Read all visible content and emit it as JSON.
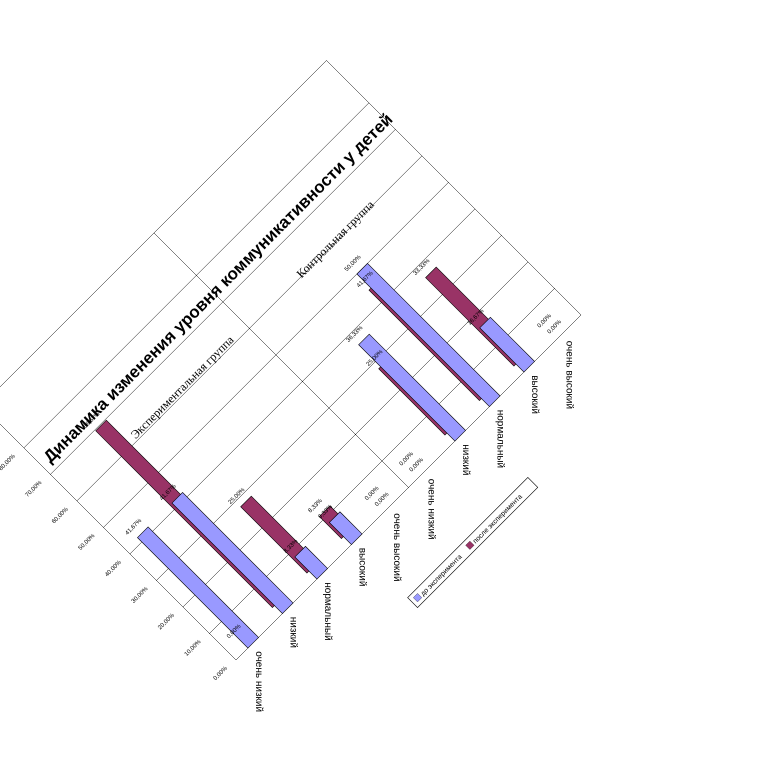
{
  "chart_data": {
    "type": "bar",
    "title": "Динамика изменения уровня коммуникативности у детей",
    "groups": [
      "Экспериментальная группа",
      "Контрольная группа"
    ],
    "categories": [
      "очень низкий",
      "низкий",
      "нормальный",
      "высокий",
      "очень высокий"
    ],
    "series": [
      {
        "name": "до эксперимента",
        "color": "#9999ff",
        "values": [
          [
            41.67,
            41.67,
            8.33,
            8.33,
            0.0
          ],
          [
            0.0,
            36.33,
            50.0,
            16.67,
            0.0
          ]
        ],
        "labels": [
          [
            "41,67%",
            "41,67%",
            "8,33%",
            "8,33%",
            "0,00%"
          ],
          [
            "0,00%",
            "36,33%",
            "50,00%",
            "16,67%",
            "0,00%"
          ]
        ]
      },
      {
        "name": "после эксперимента",
        "color": "#993366",
        "values": [
          [
            0.0,
            66.67,
            25.0,
            8.33,
            0.0
          ],
          [
            0.0,
            25.0,
            41.67,
            33.33,
            0.0
          ]
        ],
        "labels": [
          [
            "0,00%",
            "66,67%",
            "25,00%",
            "8,33%",
            "0,00%"
          ],
          [
            "0,00%",
            "25,00%",
            "41,67%",
            "33,33%",
            "0,00%"
          ]
        ]
      }
    ],
    "ylim": [
      0,
      80
    ],
    "yticks": [
      "0,00%",
      "10,00%",
      "20,00%",
      "30,00%",
      "40,00%",
      "50,00%",
      "60,00%",
      "70,00%",
      "80,00%"
    ],
    "grid": true,
    "legend_position": "bottom-right"
  }
}
